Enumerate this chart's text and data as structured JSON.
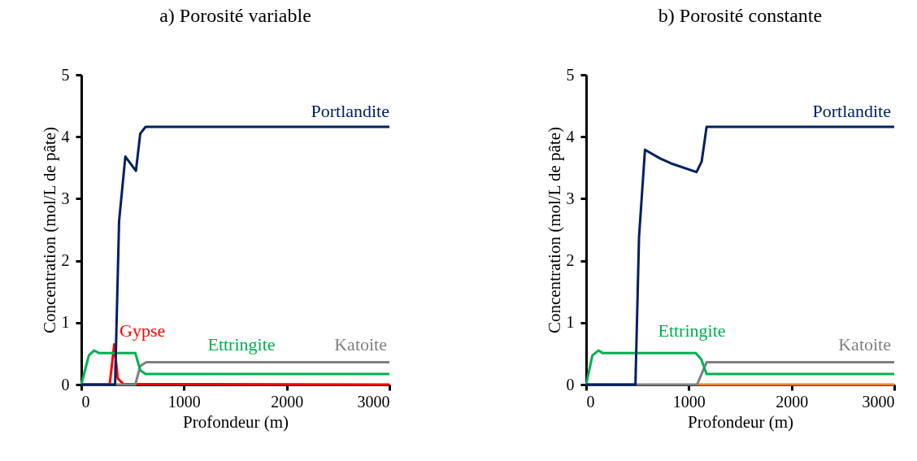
{
  "chart_data": [
    {
      "type": "line",
      "title": "a) Porosité variable",
      "xlabel": "Profondeur (m)",
      "ylabel": "Concentration (mol/L de pâte)",
      "xlim": [
        0,
        3000
      ],
      "xticks": [
        0,
        1000,
        2000,
        3000
      ],
      "ylim": [
        0,
        5
      ],
      "yticks": [
        0,
        1,
        2,
        3,
        4,
        5
      ],
      "grid": false,
      "legend": false,
      "marker": "none",
      "line_style": "solid",
      "series": [
        {
          "name": "Portlandite",
          "color": "#002060",
          "x": [
            0,
            329,
            368,
            429,
            532,
            574,
            626,
            3000
          ],
          "values": [
            0,
            0,
            2.64,
            3.68,
            3.45,
            4.05,
            4.16,
            4.16
          ]
        },
        {
          "name": "Ettringite",
          "color": "#00b050",
          "x": [
            0,
            74,
            124,
            171,
            526,
            574,
            626,
            3000
          ],
          "values": [
            0,
            0.47,
            0.55,
            0.51,
            0.51,
            0.23,
            0.17,
            0.17
          ]
        },
        {
          "name": "Katoite",
          "color": "#808080",
          "x": [
            0,
            526,
            574,
            632,
            3000
          ],
          "values": [
            0,
            0,
            0.3,
            0.36,
            0.36
          ]
        },
        {
          "name": "Gypse",
          "color": "#ff0000",
          "x": [
            0,
            276,
            321,
            355,
            408,
            3000
          ],
          "values": [
            0,
            0,
            0.65,
            0.1,
            0.01,
            0
          ]
        }
      ]
    },
    {
      "type": "line",
      "title": "b) Porosité constante",
      "xlabel": "Profondeur (m)",
      "ylabel": "Concentration (mol/L de pâte)",
      "xlim": [
        0,
        3000
      ],
      "xticks": [
        0,
        1000,
        2000,
        3000
      ],
      "ylim": [
        0,
        5
      ],
      "yticks": [
        0,
        1,
        2,
        3,
        4,
        5
      ],
      "grid": false,
      "legend": false,
      "marker": "none",
      "line_style": "solid",
      "series": [
        {
          "name": "Portlandite",
          "color": "#002060",
          "x": [
            0,
            480,
            515,
            573,
            720,
            827,
            1075,
            1125,
            1173,
            3000
          ],
          "values": [
            0,
            0,
            2.38,
            3.79,
            3.65,
            3.57,
            3.43,
            3.6,
            4.16,
            4.16
          ]
        },
        {
          "name": "Ettringite",
          "color": "#00b050",
          "x": [
            0,
            61,
            120,
            160,
            1067,
            1120,
            1173,
            3000
          ],
          "values": [
            0,
            0.47,
            0.55,
            0.51,
            0.51,
            0.41,
            0.17,
            0.17
          ]
        },
        {
          "name": "Katoite",
          "color": "#808080",
          "x": [
            0,
            1080,
            1173,
            3000
          ],
          "values": [
            0,
            0,
            0.36,
            0.36
          ]
        },
        {
          "color": "#ed7d31",
          "x": [
            1080,
            3000
          ],
          "values": [
            0,
            0
          ]
        }
      ]
    }
  ]
}
